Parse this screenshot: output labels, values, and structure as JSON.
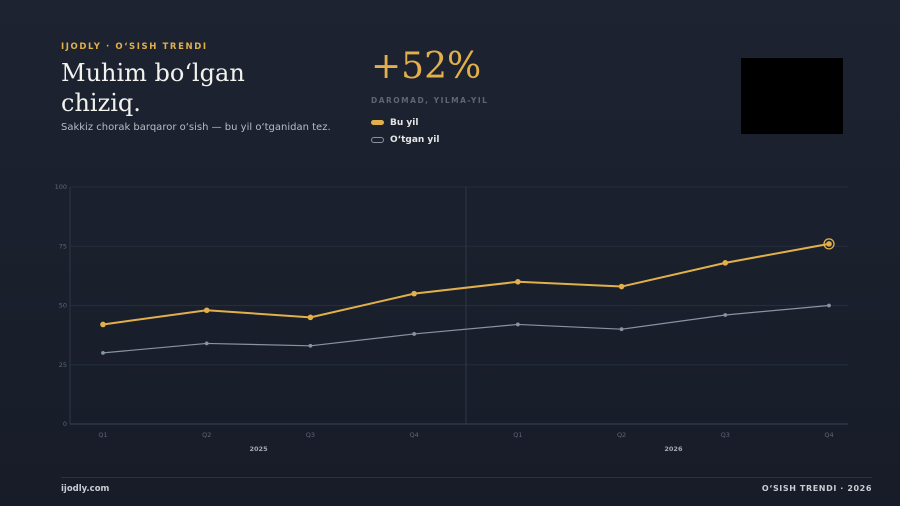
{
  "header": {
    "eyebrow": "IJODLY · O‘SISH TRENDI",
    "title": "Muhim bo‘lgan chiziq.",
    "subtitle": "Sakkiz chorak barqaror o‘sish — bu yil o‘tganidan tez."
  },
  "kpi": {
    "value": "+52%",
    "label": "DAROMAD, YILMA-YIL"
  },
  "legend": {
    "current": "Bu yil",
    "previous": "O‘tgan yil"
  },
  "footer": {
    "left": "ijodly.com",
    "right": "O‘SISH TRENDI · 2026"
  },
  "colors": {
    "accent": "#e2b04a",
    "secondary": "#8a93a2",
    "background": "#1a1f2c"
  },
  "chart_data": {
    "type": "line",
    "categories": [
      "Q1",
      "Q2",
      "Q3",
      "Q4",
      "Q1",
      "Q2",
      "Q3",
      "Q4"
    ],
    "groups": [
      {
        "label": "2025",
        "from": 0,
        "to": 3
      },
      {
        "label": "2026",
        "from": 4,
        "to": 7
      }
    ],
    "series": [
      {
        "name": "Bu yil",
        "values": [
          42,
          48,
          45,
          55,
          60,
          58,
          68,
          76
        ],
        "color": "#e2b04a"
      },
      {
        "name": "O‘tgan yil",
        "values": [
          30,
          34,
          33,
          38,
          42,
          40,
          46,
          50
        ],
        "color": "#8a93a2"
      }
    ],
    "yticks": [
      0,
      25,
      50,
      75,
      100
    ],
    "ylim": [
      0,
      100
    ],
    "grid": true,
    "legend_position": "top",
    "highlight_last_point": true
  }
}
